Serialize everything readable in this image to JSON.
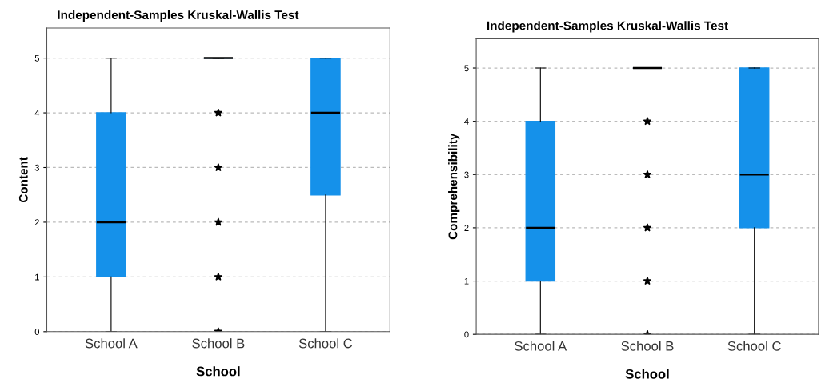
{
  "chart_data": [
    {
      "type": "box",
      "title": "Independent-Samples Kruskal-Wallis Test",
      "xlabel": "School",
      "ylabel": "Content",
      "categories": [
        "School A",
        "School B",
        "School C"
      ],
      "color": "#1591ea",
      "marker": "star",
      "grid": "y",
      "ylim": [
        0,
        5.55
      ],
      "yticks": [
        0,
        1,
        2,
        3,
        4,
        5
      ],
      "boxes": [
        {
          "low": 0,
          "q1": 1,
          "median": 2,
          "q3": 4,
          "high": 5
        },
        {
          "low": 5,
          "q1": 5,
          "median": 5,
          "q3": 5,
          "high": 5,
          "outliers": [
            4,
            3,
            2,
            1,
            0
          ]
        },
        {
          "low": 0,
          "q1": 2.5,
          "median": 4,
          "q3": 5,
          "high": 5
        }
      ]
    },
    {
      "type": "box",
      "title": "Independent-Samples Kruskal-Wallis Test",
      "xlabel": "School",
      "ylabel": "Comprehensibility",
      "categories": [
        "School A",
        "School B",
        "School C"
      ],
      "color": "#1591ea",
      "marker": "star",
      "grid": "y",
      "ylim": [
        0,
        5.55
      ],
      "yticks": [
        0,
        1,
        2,
        3,
        4,
        5
      ],
      "boxes": [
        {
          "low": 0,
          "q1": 1,
          "median": 2,
          "q3": 4,
          "high": 5
        },
        {
          "low": 5,
          "q1": 5,
          "median": 5,
          "q3": 5,
          "high": 5,
          "outliers": [
            4,
            3,
            2,
            1,
            0
          ]
        },
        {
          "low": 0,
          "q1": 2,
          "median": 3,
          "q3": 5,
          "high": 5
        }
      ]
    }
  ]
}
